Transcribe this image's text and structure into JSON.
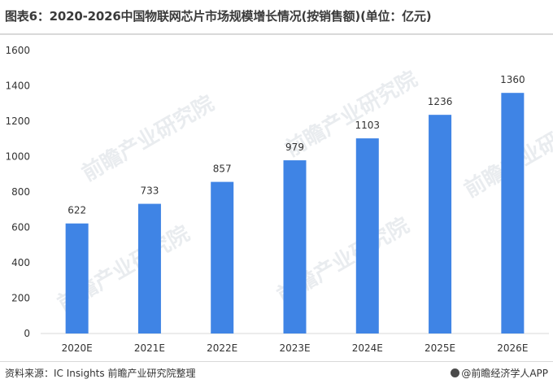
{
  "header": {
    "title": "图表6：2020-2026中国物联网芯片市场规模增长情况(按销售额)(单位：亿元)"
  },
  "footer": {
    "source": "资料来源：IC Insights 前瞻产业研究院整理",
    "brand": "@前瞻经济学人APP"
  },
  "watermark": {
    "text": "前瞻产业研究院"
  },
  "colors": {
    "bar": "#3f84e5",
    "axis": "#d9d9d9",
    "text": "#333333"
  },
  "chart_data": {
    "type": "bar",
    "categories": [
      "2020E",
      "2021E",
      "2022E",
      "2023E",
      "2024E",
      "2025E",
      "2026E"
    ],
    "values": [
      622,
      733,
      857,
      979,
      1103,
      1236,
      1360
    ],
    "ylim": [
      0,
      1600
    ],
    "yticks": [
      0,
      200,
      400,
      600,
      800,
      1000,
      1200,
      1400,
      1600
    ],
    "grid": false,
    "legend": "none"
  }
}
